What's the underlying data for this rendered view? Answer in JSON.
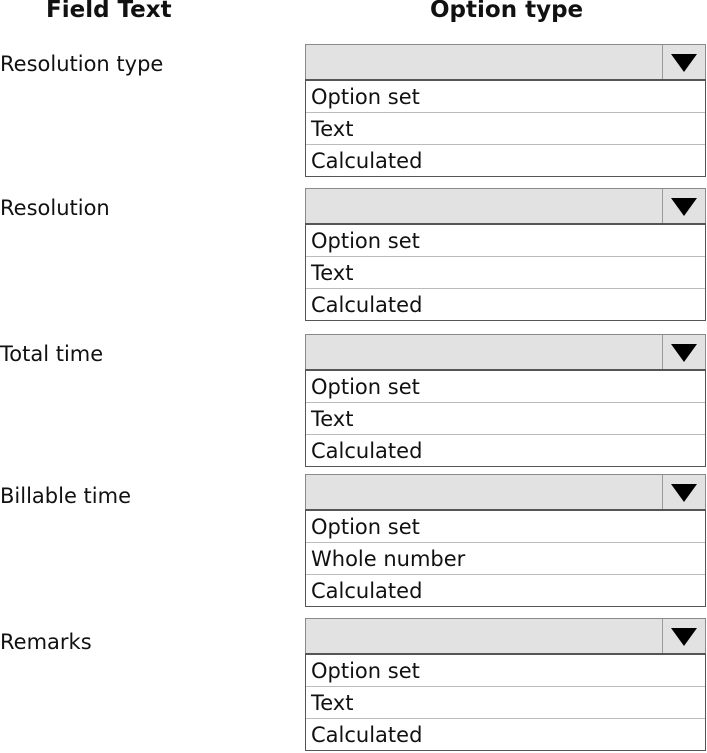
{
  "headers": {
    "field_text": "Field Text",
    "option_type": "Option type"
  },
  "rows": [
    {
      "label": "Resolution type",
      "selected": "",
      "options": [
        "Option set",
        "Text",
        "Calculated"
      ]
    },
    {
      "label": "Resolution",
      "selected": "",
      "options": [
        "Option set",
        "Text",
        "Calculated"
      ]
    },
    {
      "label": "Total time",
      "selected": "",
      "options": [
        "Option set",
        "Text",
        "Calculated"
      ]
    },
    {
      "label": "Billable time",
      "selected": "",
      "options": [
        "Option set",
        "Whole number",
        "Calculated"
      ]
    },
    {
      "label": "Remarks",
      "selected": "",
      "options": [
        "Option set",
        "Text",
        "Calculated"
      ]
    }
  ],
  "icons": {
    "dropdown": "triangle-down-icon"
  },
  "colors": {
    "select_bg": "#e2e2e2"
  }
}
